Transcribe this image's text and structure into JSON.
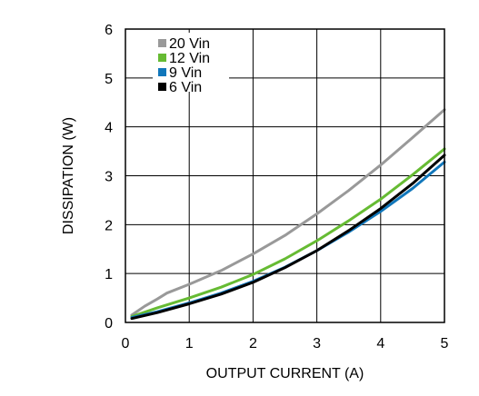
{
  "chart_data": {
    "type": "line",
    "title": "",
    "xlabel": "OUTPUT CURRENT (A)",
    "ylabel": "DISSIPATION (W)",
    "xlim": [
      0,
      5
    ],
    "ylim": [
      0,
      6
    ],
    "xticks": [
      "0",
      "1",
      "2",
      "3",
      "4",
      "5"
    ],
    "yticks": [
      "0",
      "1",
      "2",
      "3",
      "4",
      "5",
      "6"
    ],
    "grid": true,
    "legend_position": "top-left",
    "series": [
      {
        "name": "20 Vin",
        "color": "#999999",
        "x": [
          0.1,
          0.3,
          0.5,
          0.65,
          1.0,
          1.5,
          2.0,
          2.5,
          3.0,
          3.5,
          4.0,
          4.5,
          5.0
        ],
        "y": [
          0.15,
          0.33,
          0.48,
          0.6,
          0.78,
          1.06,
          1.4,
          1.78,
          2.22,
          2.7,
          3.22,
          3.78,
          4.35
        ]
      },
      {
        "name": "12 Vin",
        "color": "#66bb33",
        "x": [
          0.1,
          0.5,
          1.0,
          1.5,
          2.0,
          2.5,
          3.0,
          3.5,
          4.0,
          4.5,
          5.0
        ],
        "y": [
          0.12,
          0.3,
          0.5,
          0.72,
          0.98,
          1.3,
          1.67,
          2.08,
          2.52,
          3.02,
          3.55
        ]
      },
      {
        "name": "9 Vin",
        "color": "#1177bb",
        "x": [
          0.1,
          0.5,
          1.0,
          1.5,
          2.0,
          2.5,
          3.0,
          3.5,
          4.0,
          4.5,
          5.0
        ],
        "y": [
          0.1,
          0.22,
          0.4,
          0.6,
          0.84,
          1.13,
          1.47,
          1.85,
          2.27,
          2.74,
          3.28
        ]
      },
      {
        "name": "6 Vin",
        "color": "#000000",
        "x": [
          0.1,
          0.5,
          1.0,
          1.5,
          2.0,
          2.5,
          3.0,
          3.5,
          4.0,
          4.5,
          5.0
        ],
        "y": [
          0.08,
          0.2,
          0.38,
          0.58,
          0.82,
          1.12,
          1.47,
          1.88,
          2.33,
          2.84,
          3.42
        ]
      }
    ]
  }
}
